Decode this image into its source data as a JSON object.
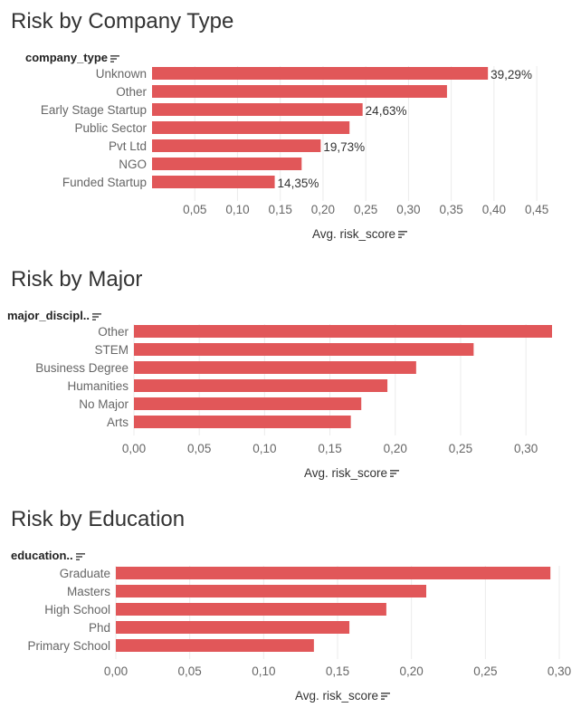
{
  "bar_color": "#e15759",
  "gridline_color": "#ebebeb",
  "panels": [
    {
      "title": "Risk by Company Type",
      "field_header": "company_type",
      "axis_title": "Avg. risk_score"
    },
    {
      "title": "Risk by Major",
      "field_header": "major_discipl..",
      "axis_title": "Avg. risk_score"
    },
    {
      "title": "Risk by Education",
      "field_header": "education..",
      "axis_title": "Avg. risk_score"
    }
  ],
  "chart_data": [
    {
      "type": "bar",
      "orientation": "horizontal",
      "title": "Risk by Company Type",
      "ylabel": "company_type",
      "xlabel": "Avg. risk_score",
      "xlim": [
        0,
        0.47
      ],
      "grid": true,
      "categories": [
        "Unknown",
        "Other",
        "Early Stage Startup",
        "Public Sector",
        "Pvt Ltd",
        "NGO",
        "Funded Startup"
      ],
      "values": [
        0.3929,
        0.345,
        0.2463,
        0.231,
        0.1973,
        0.175,
        0.1435
      ],
      "data_labels": [
        "39,29%",
        "",
        "24,63%",
        "",
        "19,73%",
        "",
        "14,35%"
      ],
      "ticks": [
        0.05,
        0.1,
        0.15,
        0.2,
        0.25,
        0.3,
        0.35,
        0.4,
        0.45
      ],
      "tick_labels": [
        "0,05",
        "0,10",
        "0,15",
        "0,20",
        "0,25",
        "0,30",
        "0,35",
        "0,40",
        "0,45"
      ]
    },
    {
      "type": "bar",
      "orientation": "horizontal",
      "title": "Risk by Major",
      "ylabel": "major_discipl..",
      "xlabel": "Avg. risk_score",
      "xlim": [
        0,
        0.32
      ],
      "grid": true,
      "categories": [
        "Other",
        "STEM",
        "Business Degree",
        "Humanities",
        "No Major",
        "Arts"
      ],
      "values": [
        0.32,
        0.26,
        0.216,
        0.194,
        0.174,
        0.166
      ],
      "data_labels": [
        "",
        "",
        "",
        "",
        "",
        ""
      ],
      "ticks": [
        0.0,
        0.05,
        0.1,
        0.15,
        0.2,
        0.25,
        0.3
      ],
      "tick_labels": [
        "0,00",
        "0,05",
        "0,10",
        "0,15",
        "0,20",
        "0,25",
        "0,30"
      ]
    },
    {
      "type": "bar",
      "orientation": "horizontal",
      "title": "Risk by Education",
      "ylabel": "education..",
      "xlabel": "Avg. risk_score",
      "xlim": [
        0,
        0.3
      ],
      "grid": true,
      "categories": [
        "Graduate",
        "Masters",
        "High School",
        "Phd",
        "Primary School"
      ],
      "values": [
        0.294,
        0.21,
        0.183,
        0.158,
        0.134
      ],
      "data_labels": [
        "",
        "",
        "",
        "",
        ""
      ],
      "ticks": [
        0.0,
        0.05,
        0.1,
        0.15,
        0.2,
        0.25,
        0.3
      ],
      "tick_labels": [
        "0,00",
        "0,05",
        "0,10",
        "0,15",
        "0,20",
        "0,25",
        "0,30"
      ]
    }
  ]
}
